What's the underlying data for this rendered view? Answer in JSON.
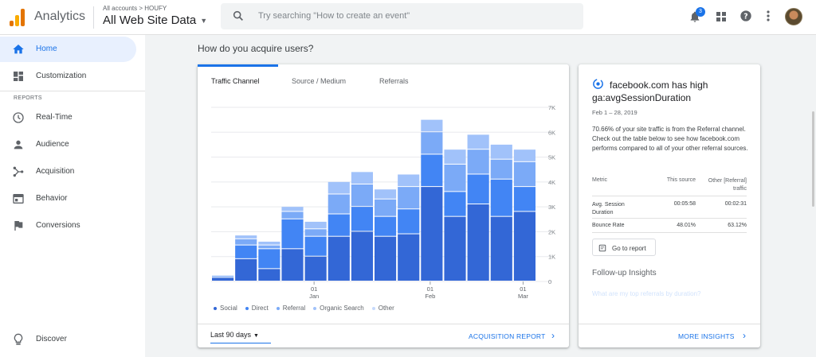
{
  "header": {
    "app_name": "Analytics",
    "account_crumb": "All accounts > HOUFY",
    "property": "All Web Site Data",
    "search_placeholder": "Try searching \"How to create an event\"",
    "notification_count": "3",
    "icons": [
      "bell-icon",
      "apps-grid-icon",
      "help-icon",
      "more-vert-icon"
    ]
  },
  "sidebar": {
    "items": [
      {
        "label": "Home",
        "icon": "home-icon",
        "active": true
      },
      {
        "label": "Customization",
        "icon": "dashboard-icon",
        "active": false
      }
    ],
    "section_label": "REPORTS",
    "report_items": [
      {
        "label": "Real-Time",
        "icon": "clock-icon"
      },
      {
        "label": "Audience",
        "icon": "person-icon"
      },
      {
        "label": "Acquisition",
        "icon": "acquisition-icon"
      },
      {
        "label": "Behavior",
        "icon": "behavior-icon"
      },
      {
        "label": "Conversions",
        "icon": "flag-icon"
      }
    ],
    "discover": {
      "label": "Discover",
      "icon": "lightbulb-icon"
    }
  },
  "main": {
    "title": "How do you acquire users?",
    "tabs": [
      {
        "label": "Traffic Channel",
        "active": true
      },
      {
        "label": "Source / Medium",
        "active": false
      },
      {
        "label": "Referrals",
        "active": false
      }
    ],
    "date_range": "Last 90 days",
    "report_link": "ACQUISITION REPORT"
  },
  "chart_data": {
    "type": "bar",
    "stacked": true,
    "x_tick_labels": [
      {
        "day": "01",
        "month": "Jan",
        "index": 4
      },
      {
        "day": "01",
        "month": "Feb",
        "index": 9
      },
      {
        "day": "01",
        "month": "Mar",
        "index": 13
      }
    ],
    "yticks": [
      "7K",
      "6K",
      "5K",
      "4K",
      "3K",
      "2K",
      "1K",
      "0"
    ],
    "ylim": [
      0,
      7000
    ],
    "grid": true,
    "legend_position": "bottom-left",
    "series": [
      {
        "name": "Social",
        "color": "#3367d6",
        "values": [
          150,
          900,
          500,
          1300,
          1000,
          1800,
          2000,
          1800,
          1900,
          3800,
          2600,
          3100,
          2600,
          2800
        ]
      },
      {
        "name": "Direct",
        "color": "#4285f4",
        "values": [
          60,
          550,
          800,
          1200,
          800,
          900,
          1000,
          800,
          1000,
          1300,
          1000,
          1200,
          1500,
          1000
        ]
      },
      {
        "name": "Referral",
        "color": "#7baaf7",
        "values": [
          40,
          250,
          150,
          300,
          300,
          800,
          900,
          700,
          900,
          900,
          1100,
          1000,
          800,
          1000
        ]
      },
      {
        "name": "Organic Search",
        "color": "#a1c2fa",
        "values": [
          20,
          150,
          150,
          200,
          300,
          500,
          500,
          400,
          500,
          500,
          600,
          600,
          600,
          500
        ]
      },
      {
        "name": "Other",
        "color": "#c6dafc",
        "values": [
          0,
          0,
          0,
          0,
          0,
          0,
          0,
          0,
          0,
          0,
          0,
          0,
          0,
          0
        ]
      }
    ]
  },
  "insight": {
    "title": "facebook.com has high ga:avgSessionDuration",
    "date": "Feb 1 – 28, 2019",
    "body": "70.66% of your site traffic is from the Referral channel. Check out the table below to see how facebook.com performs compared to all of your other referral sources.",
    "table": {
      "headers": [
        "Metric",
        "This source",
        "Other [Referral] traffic"
      ],
      "rows": [
        [
          "Avg. Session Duration",
          "00:05:58",
          "00:02:31"
        ],
        [
          "Bounce Rate",
          "48.01%",
          "63.12%"
        ]
      ]
    },
    "goto_label": "Go to report",
    "followup_label": "Follow-up Insights",
    "followup_question": "What are my top referrals by duration?",
    "more_link": "MORE INSIGHTS"
  }
}
